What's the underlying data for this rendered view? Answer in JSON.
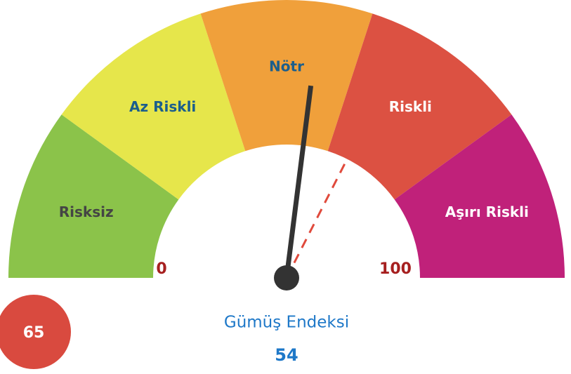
{
  "chart_data": {
    "type": "gauge",
    "title": "Gümüş Endeksi",
    "min": 0,
    "max": 100,
    "value": 54,
    "reference": 65,
    "bands": [
      {
        "label": "Risksiz",
        "from": 0,
        "to": 20,
        "color": "#8bc34a",
        "label_color": "#444444"
      },
      {
        "label": "Az Riskli",
        "from": 20,
        "to": 40,
        "color": "#e6e64b",
        "label_color": "#1b5e8c"
      },
      {
        "label": "Nötr",
        "from": 40,
        "to": 60,
        "color": "#f0a03b",
        "label_color": "#1b5e8c"
      },
      {
        "label": "Riskli",
        "from": 60,
        "to": 80,
        "color": "#dc5142",
        "label_color": "#ffffff"
      },
      {
        "label": "Aşırı Riskli",
        "from": 80,
        "to": 100,
        "color": "#c0217a",
        "label_color": "#ffffff"
      }
    ]
  }
}
